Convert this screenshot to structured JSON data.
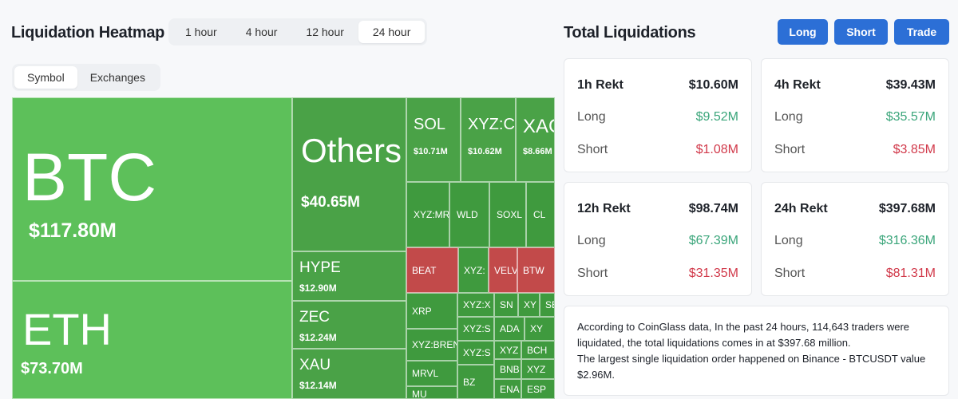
{
  "header": {
    "heatmap_title": "Liquidation Heatmap",
    "totals_title": "Total Liquidations"
  },
  "time_tabs": [
    "1 hour",
    "4 hour",
    "12 hour",
    "24 hour"
  ],
  "time_active": "24 hour",
  "view_tabs": [
    "Symbol",
    "Exchanges"
  ],
  "view_active": "Symbol",
  "buttons": {
    "long": "Long",
    "short": "Short",
    "trade": "Trade"
  },
  "colors": {
    "accent": "#2c6fd6",
    "long_green": "#3aa57a",
    "short_red": "#d1394a",
    "tile_green": "#5dc05a",
    "tile_red": "#c24a4a"
  },
  "heatmap": {
    "tiles": [
      {
        "symbol": "BTC",
        "value": "$117.80M",
        "kind": "long"
      },
      {
        "symbol": "ETH",
        "value": "$73.70M",
        "kind": "long"
      },
      {
        "symbol": "Others",
        "value": "$40.65M",
        "kind": "long"
      },
      {
        "symbol": "HYPE",
        "value": "$12.90M",
        "kind": "long"
      },
      {
        "symbol": "ZEC",
        "value": "$12.24M",
        "kind": "long"
      },
      {
        "symbol": "XAU",
        "value": "$12.14M",
        "kind": "long"
      },
      {
        "symbol": "SOL",
        "value": "$10.71M",
        "kind": "long"
      },
      {
        "symbol": "XYZ:CL",
        "value": "$10.62M",
        "kind": "long"
      },
      {
        "symbol": "XAG",
        "value": "$8.66M",
        "kind": "long"
      },
      {
        "symbol": "XYZ:MR",
        "value": "",
        "kind": "long"
      },
      {
        "symbol": "WLD",
        "value": "",
        "kind": "long"
      },
      {
        "symbol": "SOXL",
        "value": "",
        "kind": "long"
      },
      {
        "symbol": "CL",
        "value": "",
        "kind": "long"
      },
      {
        "symbol": "BEAT",
        "value": "",
        "kind": "short"
      },
      {
        "symbol": "XYZ:",
        "value": "",
        "kind": "long"
      },
      {
        "symbol": "VELV",
        "value": "",
        "kind": "short"
      },
      {
        "symbol": "BTW",
        "value": "",
        "kind": "short"
      },
      {
        "symbol": "XRP",
        "value": "",
        "kind": "long"
      },
      {
        "symbol": "XYZ:X",
        "value": "",
        "kind": "long"
      },
      {
        "symbol": "SN",
        "value": "",
        "kind": "long"
      },
      {
        "symbol": "XY",
        "value": "",
        "kind": "long"
      },
      {
        "symbol": "SE",
        "value": "",
        "kind": "long"
      },
      {
        "symbol": "XYZ:BREN",
        "value": "",
        "kind": "long"
      },
      {
        "symbol": "XYZ:S",
        "value": "",
        "kind": "long"
      },
      {
        "symbol": "ADA",
        "value": "",
        "kind": "long"
      },
      {
        "symbol": "XY",
        "value": "",
        "kind": "long"
      },
      {
        "symbol": "MRVL",
        "value": "",
        "kind": "long"
      },
      {
        "symbol": "XYZ:S",
        "value": "",
        "kind": "long"
      },
      {
        "symbol": "XYZ",
        "value": "",
        "kind": "long"
      },
      {
        "symbol": "BCH",
        "value": "",
        "kind": "long"
      },
      {
        "symbol": "MU",
        "value": "",
        "kind": "long"
      },
      {
        "symbol": "BZ",
        "value": "",
        "kind": "long"
      },
      {
        "symbol": "BNB",
        "value": "",
        "kind": "long"
      },
      {
        "symbol": "XYZ",
        "value": "",
        "kind": "long"
      },
      {
        "symbol": "ENA",
        "value": "",
        "kind": "long"
      },
      {
        "symbol": "ESP",
        "value": "",
        "kind": "long"
      }
    ]
  },
  "rekt_cards": [
    {
      "period": "1h Rekt",
      "total": "$10.60M",
      "long_label": "Long",
      "long": "$9.52M",
      "short_label": "Short",
      "short": "$1.08M"
    },
    {
      "period": "4h Rekt",
      "total": "$39.43M",
      "long_label": "Long",
      "long": "$35.57M",
      "short_label": "Short",
      "short": "$3.85M"
    },
    {
      "period": "12h Rekt",
      "total": "$98.74M",
      "long_label": "Long",
      "long": "$67.39M",
      "short_label": "Short",
      "short": "$31.35M"
    },
    {
      "period": "24h Rekt",
      "total": "$397.68M",
      "long_label": "Long",
      "long": "$316.36M",
      "short_label": "Short",
      "short": "$81.31M"
    }
  ],
  "summary": {
    "line1": "According to CoinGlass data, In the past 24 hours, 114,643 traders were liquidated, the total liquidations comes in at $397.68 million.",
    "line2": "The largest single liquidation order happened on Binance - BTCUSDT value $2.96M."
  }
}
